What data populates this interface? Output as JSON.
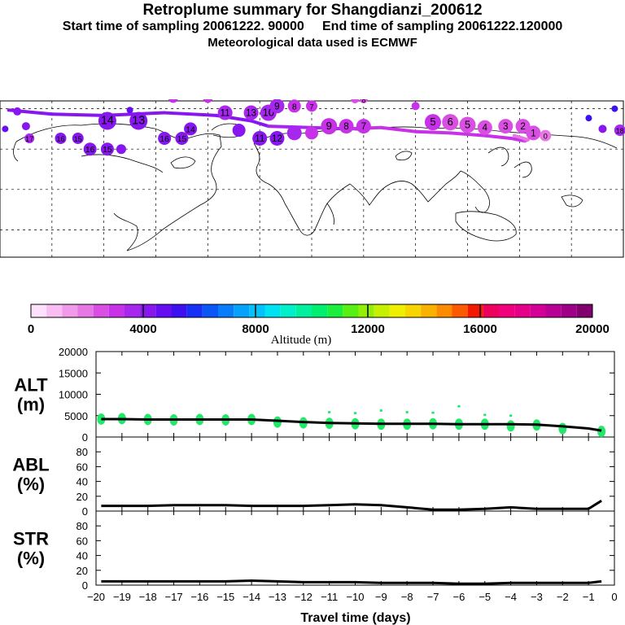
{
  "header": {
    "title": "Retroplume summary for Shangdianzi_200612",
    "subtitle_line1": "Start time of sampling 20061222. 90000     End time of sampling 20061222.120000",
    "subtitle_line2": "Meteorological data used is ECMWF"
  },
  "map": {
    "description_label": "",
    "track_points": [
      {
        "lon": -175,
        "lat": 59,
        "day": 20,
        "alt": 4200
      },
      {
        "lon": -150,
        "lat": 56,
        "day": 19,
        "alt": 4300
      },
      {
        "lon": -120,
        "lat": 55,
        "day": 18,
        "alt": 4100
      },
      {
        "lon": -85,
        "lat": 57,
        "day": 17,
        "alt": 4100
      },
      {
        "lon": -55,
        "lat": 55,
        "day": 16,
        "alt": 4000
      },
      {
        "lon": -35,
        "lat": 51,
        "day": 15,
        "alt": 4100
      },
      {
        "lon": -25,
        "lat": 47,
        "day": 14,
        "alt": 4000
      },
      {
        "lon": 0,
        "lat": 46,
        "day": 13,
        "alt": 3500
      },
      {
        "lon": 20,
        "lat": 45,
        "day": 12,
        "alt": 3300
      },
      {
        "lon": 40,
        "lat": 46,
        "day": 11,
        "alt": 3200
      },
      {
        "lon": 60,
        "lat": 43,
        "day": 10,
        "alt": 3100
      },
      {
        "lon": 80,
        "lat": 42,
        "day": 9,
        "alt": 3000
      },
      {
        "lon": 100,
        "lat": 40,
        "day": 8,
        "alt": 3000
      },
      {
        "lon": 115,
        "lat": 38,
        "day": 7,
        "alt": 2900
      },
      {
        "lon": 123,
        "lat": 36,
        "day": 6,
        "alt": 2700
      },
      {
        "lon": 125,
        "lat": 37,
        "day": 5,
        "alt": 2500
      },
      {
        "lon": 117,
        "lat": 40,
        "day": 0,
        "alt": 1500
      }
    ],
    "markers": [
      {
        "lon": -170,
        "lat": 58,
        "label": "",
        "alt": 4000,
        "size": 5
      },
      {
        "lon": -177,
        "lat": 45,
        "label": "",
        "alt": 4500,
        "size": 4
      },
      {
        "lon": -165,
        "lat": 47,
        "label": "",
        "alt": 4200,
        "size": 5
      },
      {
        "lon": -163,
        "lat": 38,
        "label": "17",
        "alt": 3800,
        "size": 6
      },
      {
        "lon": -145,
        "lat": 38,
        "label": "16",
        "alt": 4200,
        "size": 7
      },
      {
        "lon": -135,
        "lat": 38,
        "label": "15",
        "alt": 4100,
        "size": 7
      },
      {
        "lon": -128,
        "lat": 30,
        "label": "16",
        "alt": 4100,
        "size": 8
      },
      {
        "lon": -118,
        "lat": 30,
        "label": "15",
        "alt": 4200,
        "size": 8
      },
      {
        "lon": -110,
        "lat": 30,
        "label": "",
        "alt": 4000,
        "size": 6
      },
      {
        "lon": -118,
        "lat": 51,
        "label": "14",
        "alt": 4300,
        "size": 11
      },
      {
        "lon": -100,
        "lat": 51,
        "label": "13",
        "alt": 4300,
        "size": 11
      },
      {
        "lon": -105,
        "lat": 59,
        "label": "",
        "alt": 4600,
        "size": 4
      },
      {
        "lon": -80,
        "lat": 68,
        "label": "",
        "alt": 3000,
        "size": 6
      },
      {
        "lon": -60,
        "lat": 68,
        "label": "",
        "alt": 3200,
        "size": 6
      },
      {
        "lon": -85,
        "lat": 38,
        "label": "16",
        "alt": 4000,
        "size": 8
      },
      {
        "lon": -75,
        "lat": 38,
        "label": "15",
        "alt": 4100,
        "size": 8
      },
      {
        "lon": -70,
        "lat": 45,
        "label": "14",
        "alt": 4000,
        "size": 8
      },
      {
        "lon": -35,
        "lat": 57,
        "label": "13",
        "alt": 3800,
        "size": 9
      },
      {
        "lon": -50,
        "lat": 57,
        "label": "11",
        "alt": 3600,
        "size": 9
      },
      {
        "lon": -42,
        "lat": 44,
        "label": "",
        "alt": 4300,
        "size": 8
      },
      {
        "lon": -25,
        "lat": 57,
        "label": "10",
        "alt": 3500,
        "size": 10
      },
      {
        "lon": -20,
        "lat": 62,
        "label": "9",
        "alt": 3400,
        "size": 9
      },
      {
        "lon": -10,
        "lat": 62,
        "label": "8",
        "alt": 3300,
        "size": 8
      },
      {
        "lon": 0,
        "lat": 62,
        "label": "7",
        "alt": 3300,
        "size": 7
      },
      {
        "lon": -30,
        "lat": 38,
        "label": "11",
        "alt": 4100,
        "size": 9
      },
      {
        "lon": -20,
        "lat": 38,
        "label": "12",
        "alt": 3900,
        "size": 9
      },
      {
        "lon": -10,
        "lat": 42,
        "label": "",
        "alt": 3400,
        "size": 9
      },
      {
        "lon": 0,
        "lat": 42,
        "label": "",
        "alt": 3000,
        "size": 8
      },
      {
        "lon": 10,
        "lat": 47,
        "label": "9",
        "alt": 2800,
        "size": 10
      },
      {
        "lon": 20,
        "lat": 47,
        "label": "8",
        "alt": 3000,
        "size": 9
      },
      {
        "lon": 30,
        "lat": 47,
        "label": "7",
        "alt": 2900,
        "size": 9
      },
      {
        "lon": 25,
        "lat": 67,
        "label": "",
        "alt": 2500,
        "size": 5
      },
      {
        "lon": 30,
        "lat": 67,
        "label": "8",
        "alt": 2400,
        "size": 5
      },
      {
        "lon": 60,
        "lat": 62,
        "label": "",
        "alt": 3100,
        "size": 5
      },
      {
        "lon": 70,
        "lat": 50,
        "label": "5",
        "alt": 3000,
        "size": 10
      },
      {
        "lon": 80,
        "lat": 50,
        "label": "6",
        "alt": 2700,
        "size": 10
      },
      {
        "lon": 90,
        "lat": 48,
        "label": "5",
        "alt": 2700,
        "size": 10
      },
      {
        "lon": 100,
        "lat": 46,
        "label": "4",
        "alt": 2600,
        "size": 9
      },
      {
        "lon": 112,
        "lat": 47,
        "label": "3",
        "alt": 2600,
        "size": 9
      },
      {
        "lon": 122,
        "lat": 47,
        "label": "2",
        "alt": 2500,
        "size": 9
      },
      {
        "lon": 128,
        "lat": 42,
        "label": "1",
        "alt": 2300,
        "size": 9
      },
      {
        "lon": 135,
        "lat": 40,
        "label": "0",
        "alt": 2000,
        "size": 7
      },
      {
        "lon": 160,
        "lat": 53,
        "label": "",
        "alt": 5000,
        "size": 4
      },
      {
        "lon": 175,
        "lat": 60,
        "label": "",
        "alt": 5000,
        "size": 4
      },
      {
        "lon": 168,
        "lat": 45,
        "label": "",
        "alt": 4000,
        "size": 5
      },
      {
        "lon": 178,
        "lat": 44,
        "label": "18",
        "alt": 3800,
        "size": 7
      }
    ]
  },
  "colorbar": {
    "label": "Altitude (m)",
    "ticks": [
      "0",
      "4000",
      "8000",
      "12000",
      "16000",
      "20000"
    ],
    "colors": [
      "#fde0fb",
      "#f8bdf3",
      "#f09ae9",
      "#e677e3",
      "#d94fe3",
      "#c731e8",
      "#a727ee",
      "#8716ef",
      "#650ff0",
      "#3c10f1",
      "#1630f6",
      "#0b56f7",
      "#0a7cf9",
      "#05a1fb",
      "#00c3fc",
      "#00e2f1",
      "#00f0c9",
      "#00f09c",
      "#00ef6f",
      "#1aef3d",
      "#58f012",
      "#93ef06",
      "#c7ef02",
      "#eff000",
      "#f6d500",
      "#f9b200",
      "#fb8b00",
      "#fb5a00",
      "#f41800",
      "#ee005f",
      "#f2007c",
      "#e60088",
      "#d40096",
      "#b80095",
      "#9d0086",
      "#81006e"
    ]
  },
  "chart_data": [
    {
      "type": "line",
      "panel": "ALT",
      "ylabel": "ALT\n(m)",
      "ylabel_lines": [
        "ALT",
        "(m)"
      ],
      "ylim": [
        0,
        20000
      ],
      "yticks": [
        "0",
        "5000",
        "10000",
        "15000",
        "20000"
      ],
      "x": [
        -19.8,
        -19,
        -18,
        -17,
        -16,
        -15,
        -14,
        -13,
        -12,
        -11,
        -10,
        -9,
        -8,
        -7,
        -6,
        -5,
        -4,
        -3,
        -2,
        -1,
        -0.5
      ],
      "series": [
        {
          "name": "median altitude",
          "values": [
            4200,
            4200,
            4100,
            4100,
            4100,
            4100,
            4100,
            3800,
            3500,
            3300,
            3200,
            3100,
            3100,
            3100,
            3000,
            3000,
            3000,
            2900,
            2500,
            2000,
            1500
          ]
        }
      ],
      "scatter": [
        {
          "x": -19.8,
          "y": 4200
        },
        {
          "x": -19,
          "y": 4300
        },
        {
          "x": -18,
          "y": 4100
        },
        {
          "x": -17,
          "y": 4000
        },
        {
          "x": -16,
          "y": 4100
        },
        {
          "x": -15,
          "y": 4000
        },
        {
          "x": -14,
          "y": 4100
        },
        {
          "x": -13,
          "y": 3500
        },
        {
          "x": -12,
          "y": 3300
        },
        {
          "x": -11,
          "y": 3200
        },
        {
          "x": -11,
          "y": 5800
        },
        {
          "x": -10,
          "y": 3100
        },
        {
          "x": -10,
          "y": 5600
        },
        {
          "x": -9,
          "y": 3000
        },
        {
          "x": -9,
          "y": 6200
        },
        {
          "x": -8,
          "y": 3000
        },
        {
          "x": -8,
          "y": 5800
        },
        {
          "x": -7,
          "y": 3100
        },
        {
          "x": -7,
          "y": 5700
        },
        {
          "x": -6,
          "y": 3000
        },
        {
          "x": -6,
          "y": 7200
        },
        {
          "x": -5,
          "y": 3000
        },
        {
          "x": -5,
          "y": 5200
        },
        {
          "x": -4,
          "y": 2600
        },
        {
          "x": -4,
          "y": 5000
        },
        {
          "x": -3,
          "y": 2800
        },
        {
          "x": -2,
          "y": 2000
        },
        {
          "x": -0.5,
          "y": 1300
        }
      ]
    },
    {
      "type": "line",
      "panel": "ABL",
      "ylabel": "ABL\n(%)",
      "ylabel_lines": [
        "ABL",
        "(%)"
      ],
      "ylim": [
        0,
        100
      ],
      "yticks": [
        "0",
        "20",
        "40",
        "60",
        "80"
      ],
      "x": [
        -19.8,
        -19,
        -18,
        -17,
        -16,
        -15,
        -14,
        -13,
        -12,
        -11,
        -10,
        -9,
        -8,
        -7,
        -6,
        -5,
        -4,
        -3,
        -2,
        -1,
        -0.5
      ],
      "series": [
        {
          "name": "ABL fraction",
          "values": [
            7,
            7,
            7,
            8,
            8,
            8,
            7,
            7,
            7,
            8,
            9,
            8,
            5,
            2,
            2,
            3,
            5,
            3,
            3,
            3,
            14
          ]
        }
      ]
    },
    {
      "type": "line",
      "panel": "STR",
      "ylabel": "STR\n(%)",
      "ylabel_lines": [
        "STR",
        "(%)"
      ],
      "ylim": [
        0,
        100
      ],
      "yticks": [
        "0",
        "20",
        "40",
        "60",
        "80"
      ],
      "x": [
        -19.8,
        -19,
        -18,
        -17,
        -16,
        -15,
        -14,
        -13,
        -12,
        -11,
        -10,
        -9,
        -8,
        -7,
        -6,
        -5,
        -4,
        -3,
        -2,
        -1,
        -0.5
      ],
      "series": [
        {
          "name": "STR fraction",
          "values": [
            5,
            5,
            5,
            5,
            5,
            5,
            6,
            5,
            4,
            4,
            4,
            3,
            3,
            3,
            2,
            2,
            3,
            3,
            3,
            3,
            5
          ]
        }
      ]
    }
  ],
  "xaxis": {
    "label": "Travel time (days)",
    "ticks": [
      "−20",
      "−19",
      "−18",
      "−17",
      "−16",
      "−15",
      "−14",
      "−13",
      "−12",
      "−11",
      "−10",
      "−9",
      "−8",
      "−7",
      "−6",
      "−5",
      "−4",
      "−3",
      "−2",
      "−1",
      "0"
    ],
    "tick_values": [
      -20,
      -19,
      -18,
      -17,
      -16,
      -15,
      -14,
      -13,
      -12,
      -11,
      -10,
      -9,
      -8,
      -7,
      -6,
      -5,
      -4,
      -3,
      -2,
      -1,
      0
    ]
  }
}
